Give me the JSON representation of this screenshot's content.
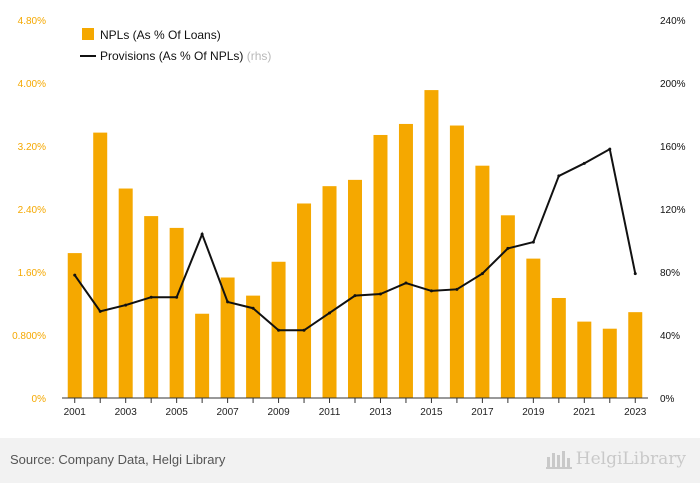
{
  "chart_data": {
    "type": "bar",
    "x": [
      "2001",
      "2002",
      "2003",
      "2004",
      "2005",
      "2006",
      "2007",
      "2008",
      "2009",
      "2010",
      "2011",
      "2012",
      "2013",
      "2014",
      "2015",
      "2016",
      "2017",
      "2018",
      "2019",
      "2020",
      "2021",
      "2022",
      "2023"
    ],
    "x_tick_labels": [
      "2001",
      "2003",
      "2005",
      "2007",
      "2009",
      "2011",
      "2013",
      "2015",
      "2017",
      "2019",
      "2021",
      "2023"
    ],
    "series": [
      {
        "name": "NPLs (As % Of Loans)",
        "type": "bar",
        "axis": "left",
        "color": "#f5a800",
        "values": [
          1.84,
          3.37,
          2.66,
          2.31,
          2.16,
          1.07,
          1.53,
          1.3,
          1.73,
          2.47,
          2.69,
          2.77,
          3.34,
          3.48,
          3.91,
          3.46,
          2.95,
          2.32,
          1.77,
          1.27,
          0.97,
          0.88,
          1.09
        ]
      },
      {
        "name": "Provisions (As % Of NPLs)",
        "name_suffix": "(rhs)",
        "type": "line",
        "axis": "right",
        "color": "#111111",
        "values": [
          78,
          55,
          59,
          64,
          64,
          104,
          61,
          57,
          43,
          43,
          54,
          65,
          66,
          73,
          68,
          69,
          79,
          95,
          99,
          141,
          149,
          158,
          79
        ]
      }
    ],
    "y_left": {
      "min": 0,
      "max": 4.8,
      "ticks": [
        0,
        0.8,
        1.6,
        2.4,
        3.2,
        4.0,
        4.8
      ],
      "tick_labels": [
        "0%",
        "0.800%",
        "1.60%",
        "2.40%",
        "3.20%",
        "4.00%",
        "4.80%"
      ],
      "color": "#f5a800"
    },
    "y_right": {
      "min": 0,
      "max": 240,
      "ticks": [
        0,
        40,
        80,
        120,
        160,
        200,
        240
      ],
      "tick_labels": [
        "0%",
        "40%",
        "80%",
        "120%",
        "160%",
        "200%",
        "240%"
      ],
      "color": "#111111"
    },
    "grid": false,
    "legend_position": "top-left"
  },
  "footer": {
    "source": "Source: Company Data, Helgi Library",
    "logo_text": "HelgiLibrary",
    "logo_icon": "helgi-library-logo-icon"
  }
}
